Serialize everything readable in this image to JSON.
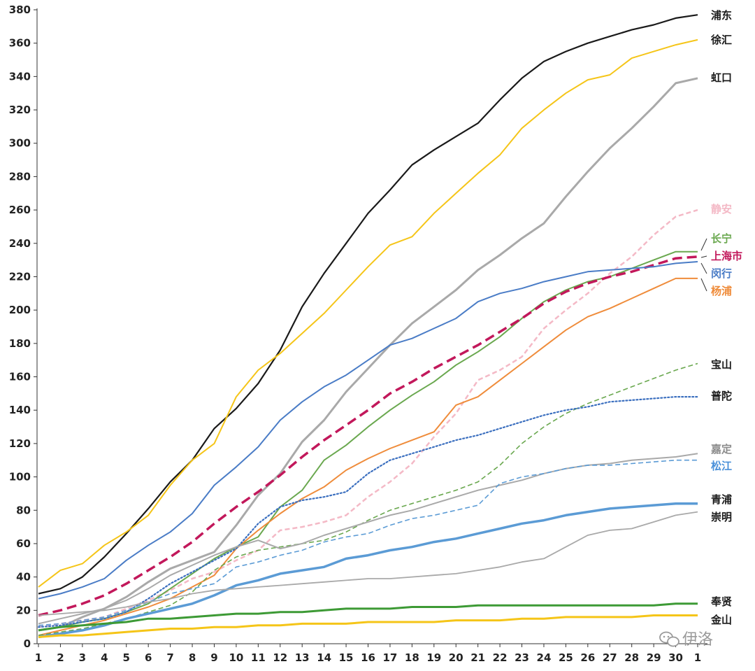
{
  "chart_data": {
    "type": "line",
    "title": "",
    "xlabel": "",
    "ylabel": "",
    "ylim": [
      0,
      380
    ],
    "yticks": [
      0,
      20,
      40,
      60,
      80,
      100,
      120,
      140,
      160,
      180,
      200,
      220,
      240,
      260,
      280,
      300,
      320,
      340,
      360,
      380
    ],
    "categories": [
      "1",
      "2",
      "3",
      "4",
      "5",
      "6",
      "7",
      "8",
      "9",
      "10",
      "11",
      "12",
      "13",
      "14",
      "15",
      "16",
      "17",
      "18",
      "19",
      "20",
      "21",
      "22",
      "23",
      "24",
      "25",
      "26",
      "27",
      "28",
      "29",
      "30",
      "1"
    ],
    "grid": false,
    "legend": "inline-right",
    "series": [
      {
        "name": "浦东",
        "color": "#1a1a1a",
        "style": "solid",
        "width": 2.2,
        "values": [
          30,
          33,
          40,
          52,
          66,
          81,
          97,
          110,
          129,
          141,
          156,
          176,
          202,
          222,
          240,
          258,
          272,
          287,
          296,
          304,
          312,
          326,
          339,
          349,
          355,
          360,
          364,
          368,
          371,
          375,
          377
        ]
      },
      {
        "name": "徐汇",
        "color": "#f5c518",
        "style": "solid",
        "width": 2,
        "values": [
          34,
          44,
          48,
          59,
          67,
          77,
          95,
          110,
          120,
          148,
          164,
          174,
          186,
          198,
          212,
          226,
          239,
          244,
          258,
          270,
          282,
          293,
          309,
          320,
          330,
          338,
          341,
          351,
          355,
          359,
          362
        ]
      },
      {
        "name": "虹口",
        "color": "#a9a9a9",
        "style": "solid",
        "width": 3,
        "values": [
          8,
          10,
          16,
          21,
          28,
          37,
          45,
          50,
          55,
          71,
          89,
          102,
          121,
          134,
          151,
          165,
          179,
          192,
          202,
          212,
          224,
          233,
          243,
          252,
          268,
          283,
          297,
          309,
          322,
          336,
          339
        ]
      },
      {
        "name": "静安",
        "color": "#f4b9c6",
        "style": "dashed",
        "width": 2.5,
        "values": [
          10,
          12,
          14,
          16,
          21,
          26,
          32,
          39,
          43,
          50,
          56,
          68,
          70,
          73,
          77,
          88,
          97,
          108,
          124,
          138,
          158,
          164,
          172,
          189,
          200,
          210,
          222,
          232,
          245,
          256,
          260
        ]
      },
      {
        "name": "长宁",
        "color": "#6aa84f",
        "style": "solid",
        "width": 2,
        "values": [
          8,
          10,
          13,
          15,
          19,
          24,
          33,
          42,
          51,
          58,
          64,
          82,
          92,
          110,
          119,
          130,
          140,
          149,
          157,
          167,
          175,
          184,
          195,
          205,
          212,
          217,
          220,
          225,
          230,
          235,
          235
        ]
      },
      {
        "name": "上海市",
        "color": "#c2185b",
        "style": "longdash",
        "width": 3.5,
        "values": [
          17,
          20,
          24,
          29,
          36,
          44,
          52,
          61,
          72,
          82,
          91,
          101,
          112,
          122,
          131,
          140,
          150,
          157,
          165,
          172,
          179,
          187,
          195,
          204,
          211,
          216,
          220,
          223,
          227,
          231,
          232
        ]
      },
      {
        "name": "闵行",
        "color": "#4a7cc6",
        "style": "solid",
        "width": 2,
        "values": [
          27,
          30,
          34,
          39,
          50,
          59,
          67,
          78,
          95,
          106,
          118,
          134,
          145,
          154,
          161,
          170,
          179,
          183,
          189,
          195,
          205,
          210,
          213,
          217,
          220,
          223,
          224,
          225,
          226,
          228,
          229
        ]
      },
      {
        "name": "杨浦",
        "color": "#ef8c3b",
        "style": "solid",
        "width": 2,
        "values": [
          5,
          8,
          11,
          14,
          18,
          22,
          27,
          34,
          41,
          57,
          68,
          78,
          87,
          94,
          104,
          111,
          117,
          122,
          127,
          143,
          148,
          158,
          168,
          178,
          188,
          196,
          201,
          207,
          213,
          219,
          219
        ]
      },
      {
        "name": "宝山",
        "color": "#6aa84f",
        "style": "dashed",
        "width": 1.6,
        "values": [
          5,
          7,
          9,
          12,
          15,
          19,
          23,
          31,
          44,
          52,
          56,
          58,
          60,
          62,
          67,
          74,
          80,
          84,
          88,
          92,
          97,
          107,
          120,
          130,
          138,
          144,
          149,
          154,
          159,
          164,
          168
        ]
      },
      {
        "name": "普陀",
        "color": "#3b6fbf",
        "style": "dotted",
        "width": 2.2,
        "values": [
          10,
          11,
          13,
          15,
          19,
          27,
          36,
          43,
          50,
          57,
          72,
          82,
          86,
          88,
          91,
          102,
          110,
          114,
          118,
          122,
          125,
          129,
          133,
          137,
          140,
          142,
          145,
          146,
          147,
          148,
          148
        ]
      },
      {
        "name": "嘉定",
        "color": "#a9a9a9",
        "style": "solid",
        "width": 2,
        "values": [
          12,
          15,
          18,
          21,
          26,
          33,
          41,
          47,
          53,
          58,
          62,
          57,
          60,
          65,
          69,
          73,
          77,
          80,
          84,
          88,
          92,
          95,
          98,
          102,
          105,
          107,
          108,
          110,
          111,
          112,
          114
        ]
      },
      {
        "name": "松江",
        "color": "#5b9bd5",
        "style": "dashed",
        "width": 1.6,
        "values": [
          11,
          12,
          14,
          16,
          20,
          25,
          30,
          33,
          36,
          46,
          49,
          53,
          56,
          61,
          64,
          66,
          71,
          75,
          77,
          80,
          83,
          96,
          100,
          102,
          105,
          107,
          107,
          108,
          109,
          110,
          110
        ]
      },
      {
        "name": "青浦",
        "color": "#5b9bd5",
        "style": "solid",
        "width": 3.5,
        "values": [
          4,
          6,
          8,
          11,
          15,
          18,
          21,
          24,
          29,
          35,
          38,
          42,
          44,
          46,
          51,
          53,
          56,
          58,
          61,
          63,
          66,
          69,
          72,
          74,
          77,
          79,
          81,
          82,
          83,
          84,
          84
        ]
      },
      {
        "name": "崇明",
        "color": "#a9a9a9",
        "style": "solid",
        "width": 1.8,
        "values": [
          17,
          18,
          19,
          20,
          22,
          25,
          27,
          30,
          32,
          33,
          34,
          35,
          36,
          37,
          38,
          39,
          39,
          40,
          41,
          42,
          44,
          46,
          49,
          51,
          58,
          65,
          68,
          69,
          73,
          77,
          79
        ]
      },
      {
        "name": "奉贤",
        "color": "#3d9a35",
        "style": "solid",
        "width": 3,
        "values": [
          8,
          10,
          11,
          12,
          13,
          15,
          15,
          16,
          17,
          18,
          18,
          19,
          19,
          20,
          21,
          21,
          21,
          22,
          22,
          22,
          23,
          23,
          23,
          23,
          23,
          23,
          23,
          23,
          23,
          24,
          24
        ]
      },
      {
        "name": "金山",
        "color": "#f5c518",
        "style": "solid",
        "width": 3,
        "values": [
          4,
          5,
          5,
          6,
          7,
          8,
          9,
          9,
          10,
          10,
          11,
          11,
          12,
          12,
          12,
          13,
          13,
          13,
          13,
          14,
          14,
          14,
          15,
          15,
          16,
          16,
          16,
          16,
          17,
          17,
          17
        ]
      }
    ]
  },
  "watermark": "伊洛"
}
